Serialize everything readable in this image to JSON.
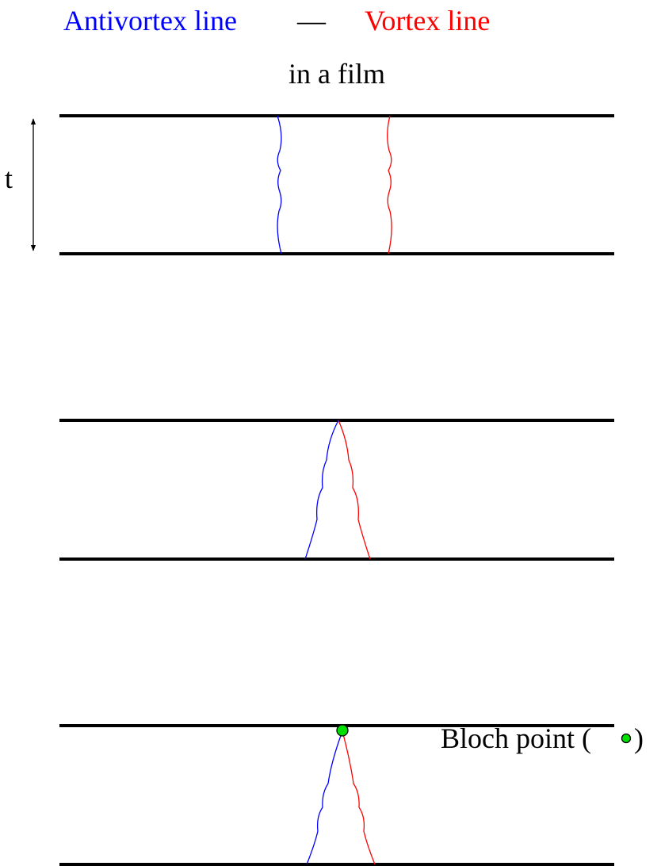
{
  "title": {
    "antivortex": "Antivortex line",
    "separator": "—",
    "vortex": "Vortex line",
    "subtitle": "in a film"
  },
  "thickness_label": "t",
  "bloch_label": {
    "text": "Bloch point (",
    "close": ")"
  }
}
